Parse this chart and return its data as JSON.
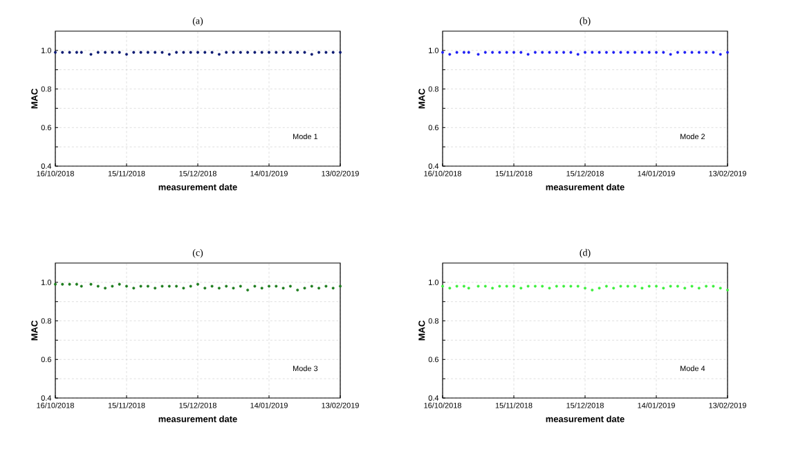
{
  "chart_data": [
    {
      "type": "scatter",
      "title": "(a)",
      "xlabel": "measurement date",
      "ylabel": "MAC",
      "annotations": [
        "Mode 1"
      ],
      "color": "#0b1a72",
      "grid": true,
      "x": [
        "2018-10-16",
        "2018-10-19",
        "2018-10-22",
        "2018-10-25",
        "2018-10-27",
        "2018-10-31",
        "2018-11-03",
        "2018-11-06",
        "2018-11-09",
        "2018-11-12",
        "2018-11-15",
        "2018-11-18",
        "2018-11-21",
        "2018-11-24",
        "2018-11-27",
        "2018-11-30",
        "2018-12-03",
        "2018-12-06",
        "2018-12-09",
        "2018-12-12",
        "2018-12-15",
        "2018-12-18",
        "2018-12-21",
        "2018-12-24",
        "2018-12-27",
        "2018-12-30",
        "2019-01-02",
        "2019-01-05",
        "2019-01-08",
        "2019-01-11",
        "2019-01-14",
        "2019-01-17",
        "2019-01-20",
        "2019-01-23",
        "2019-01-26",
        "2019-01-29",
        "2019-02-01",
        "2019-02-04",
        "2019-02-07",
        "2019-02-10",
        "2019-02-13"
      ],
      "values": [
        0.99,
        0.99,
        0.99,
        0.99,
        0.99,
        0.98,
        0.99,
        0.99,
        0.99,
        0.99,
        0.98,
        0.99,
        0.99,
        0.99,
        0.99,
        0.99,
        0.98,
        0.99,
        0.99,
        0.99,
        0.99,
        0.99,
        0.99,
        0.98,
        0.99,
        0.99,
        0.99,
        0.99,
        0.99,
        0.99,
        0.99,
        0.99,
        0.99,
        0.99,
        0.99,
        0.99,
        0.98,
        0.99,
        0.99,
        0.99,
        0.99
      ],
      "xlim": [
        "2018-10-16",
        "2019-02-13"
      ],
      "ylim": [
        0.4,
        1.1
      ],
      "xticks": [
        {
          "value": "2018-10-16",
          "label": "16/10/2018"
        },
        {
          "value": "2018-11-15",
          "label": "15/11/2018"
        },
        {
          "value": "2018-12-15",
          "label": "15/12/2018"
        },
        {
          "value": "2019-01-14",
          "label": "14/01/2019"
        },
        {
          "value": "2019-02-13",
          "label": "13/02/2019"
        }
      ],
      "yticks": [
        {
          "value": 0.4,
          "label": "0.4"
        },
        {
          "value": 0.5,
          "label": null
        },
        {
          "value": 0.6,
          "label": "0.6"
        },
        {
          "value": 0.7,
          "label": null
        },
        {
          "value": 0.8,
          "label": "0.8"
        },
        {
          "value": 0.9,
          "label": null
        },
        {
          "value": 1.0,
          "label": "1.0"
        }
      ]
    },
    {
      "type": "scatter",
      "title": "(b)",
      "xlabel": "measurement date",
      "ylabel": "MAC",
      "annotations": [
        "Mode 2"
      ],
      "color": "#1f1ff5",
      "grid": true,
      "x": [
        "2018-10-16",
        "2018-10-19",
        "2018-10-22",
        "2018-10-25",
        "2018-10-27",
        "2018-10-31",
        "2018-11-03",
        "2018-11-06",
        "2018-11-09",
        "2018-11-12",
        "2018-11-15",
        "2018-11-18",
        "2018-11-21",
        "2018-11-24",
        "2018-11-27",
        "2018-11-30",
        "2018-12-03",
        "2018-12-06",
        "2018-12-09",
        "2018-12-12",
        "2018-12-15",
        "2018-12-18",
        "2018-12-21",
        "2018-12-24",
        "2018-12-27",
        "2018-12-30",
        "2019-01-02",
        "2019-01-05",
        "2019-01-08",
        "2019-01-11",
        "2019-01-14",
        "2019-01-17",
        "2019-01-20",
        "2019-01-23",
        "2019-01-26",
        "2019-01-29",
        "2019-02-01",
        "2019-02-04",
        "2019-02-07",
        "2019-02-10",
        "2019-02-13"
      ],
      "values": [
        0.99,
        0.98,
        0.99,
        0.99,
        0.99,
        0.98,
        0.99,
        0.99,
        0.99,
        0.99,
        0.99,
        0.99,
        0.98,
        0.99,
        0.99,
        0.99,
        0.99,
        0.99,
        0.99,
        0.98,
        0.99,
        0.99,
        0.99,
        0.99,
        0.99,
        0.99,
        0.99,
        0.99,
        0.99,
        0.99,
        0.99,
        0.99,
        0.98,
        0.99,
        0.99,
        0.99,
        0.99,
        0.99,
        0.99,
        0.98,
        0.99
      ],
      "xlim": [
        "2018-10-16",
        "2019-02-13"
      ],
      "ylim": [
        0.4,
        1.1
      ],
      "xticks": [
        {
          "value": "2018-10-16",
          "label": "16/10/2018"
        },
        {
          "value": "2018-11-15",
          "label": "15/11/2018"
        },
        {
          "value": "2018-12-15",
          "label": "15/12/2018"
        },
        {
          "value": "2019-01-14",
          "label": "14/01/2019"
        },
        {
          "value": "2019-02-13",
          "label": "13/02/2019"
        }
      ],
      "yticks": [
        {
          "value": 0.4,
          "label": "0.4"
        },
        {
          "value": 0.5,
          "label": null
        },
        {
          "value": 0.6,
          "label": "0.6"
        },
        {
          "value": 0.7,
          "label": null
        },
        {
          "value": 0.8,
          "label": "0.8"
        },
        {
          "value": 0.9,
          "label": null
        },
        {
          "value": 1.0,
          "label": "1.0"
        }
      ]
    },
    {
      "type": "scatter",
      "title": "(c)",
      "xlabel": "measurement date",
      "ylabel": "MAC",
      "annotations": [
        "Mode 3"
      ],
      "color": "#1e7d1e",
      "grid": true,
      "x": [
        "2018-10-16",
        "2018-10-19",
        "2018-10-22",
        "2018-10-25",
        "2018-10-27",
        "2018-10-31",
        "2018-11-03",
        "2018-11-06",
        "2018-11-09",
        "2018-11-12",
        "2018-11-15",
        "2018-11-18",
        "2018-11-21",
        "2018-11-24",
        "2018-11-27",
        "2018-11-30",
        "2018-12-03",
        "2018-12-06",
        "2018-12-09",
        "2018-12-12",
        "2018-12-15",
        "2018-12-18",
        "2018-12-21",
        "2018-12-24",
        "2018-12-27",
        "2018-12-30",
        "2019-01-02",
        "2019-01-05",
        "2019-01-08",
        "2019-01-11",
        "2019-01-14",
        "2019-01-17",
        "2019-01-20",
        "2019-01-23",
        "2019-01-26",
        "2019-01-29",
        "2019-02-01",
        "2019-02-04",
        "2019-02-07",
        "2019-02-10",
        "2019-02-13"
      ],
      "values": [
        0.99,
        0.99,
        0.99,
        0.99,
        0.98,
        0.99,
        0.98,
        0.97,
        0.98,
        0.99,
        0.98,
        0.97,
        0.98,
        0.98,
        0.97,
        0.98,
        0.98,
        0.98,
        0.97,
        0.98,
        0.99,
        0.97,
        0.98,
        0.97,
        0.98,
        0.97,
        0.98,
        0.96,
        0.98,
        0.97,
        0.98,
        0.98,
        0.97,
        0.98,
        0.96,
        0.97,
        0.98,
        0.97,
        0.98,
        0.97,
        0.98
      ],
      "xlim": [
        "2018-10-16",
        "2019-02-13"
      ],
      "ylim": [
        0.4,
        1.1
      ],
      "xticks": [
        {
          "value": "2018-10-16",
          "label": "16/10/2018"
        },
        {
          "value": "2018-11-15",
          "label": "15/11/2018"
        },
        {
          "value": "2018-12-15",
          "label": "15/12/2018"
        },
        {
          "value": "2019-01-14",
          "label": "14/01/2019"
        },
        {
          "value": "2019-02-13",
          "label": "13/02/2019"
        }
      ],
      "yticks": [
        {
          "value": 0.4,
          "label": "0.4"
        },
        {
          "value": 0.5,
          "label": null
        },
        {
          "value": 0.6,
          "label": "0.6"
        },
        {
          "value": 0.7,
          "label": null
        },
        {
          "value": 0.8,
          "label": "0.8"
        },
        {
          "value": 0.9,
          "label": null
        },
        {
          "value": 1.0,
          "label": "1.0"
        }
      ]
    },
    {
      "type": "scatter",
      "title": "(d)",
      "xlabel": "measurement date",
      "ylabel": "MAC",
      "annotations": [
        "Mode 4"
      ],
      "color": "#3df03d",
      "grid": true,
      "x": [
        "2018-10-16",
        "2018-10-19",
        "2018-10-22",
        "2018-10-25",
        "2018-10-27",
        "2018-10-31",
        "2018-11-03",
        "2018-11-06",
        "2018-11-09",
        "2018-11-12",
        "2018-11-15",
        "2018-11-18",
        "2018-11-21",
        "2018-11-24",
        "2018-11-27",
        "2018-11-30",
        "2018-12-03",
        "2018-12-06",
        "2018-12-09",
        "2018-12-12",
        "2018-12-15",
        "2018-12-18",
        "2018-12-21",
        "2018-12-24",
        "2018-12-27",
        "2018-12-30",
        "2019-01-02",
        "2019-01-05",
        "2019-01-08",
        "2019-01-11",
        "2019-01-14",
        "2019-01-17",
        "2019-01-20",
        "2019-01-23",
        "2019-01-26",
        "2019-01-29",
        "2019-02-01",
        "2019-02-04",
        "2019-02-07",
        "2019-02-10",
        "2019-02-13"
      ],
      "values": [
        0.98,
        0.97,
        0.98,
        0.98,
        0.97,
        0.98,
        0.98,
        0.97,
        0.98,
        0.98,
        0.98,
        0.97,
        0.98,
        0.98,
        0.98,
        0.97,
        0.98,
        0.98,
        0.98,
        0.98,
        0.97,
        0.96,
        0.97,
        0.98,
        0.97,
        0.98,
        0.98,
        0.98,
        0.97,
        0.98,
        0.98,
        0.97,
        0.98,
        0.98,
        0.97,
        0.98,
        0.97,
        0.98,
        0.98,
        0.97,
        0.96
      ],
      "xlim": [
        "2018-10-16",
        "2019-02-13"
      ],
      "ylim": [
        0.4,
        1.1
      ],
      "xticks": [
        {
          "value": "2018-10-16",
          "label": "16/10/2018"
        },
        {
          "value": "2018-11-15",
          "label": "15/11/2018"
        },
        {
          "value": "2018-12-15",
          "label": "15/12/2018"
        },
        {
          "value": "2019-01-14",
          "label": "14/01/2019"
        },
        {
          "value": "2019-02-13",
          "label": "13/02/2019"
        }
      ],
      "yticks": [
        {
          "value": 0.4,
          "label": "0.4"
        },
        {
          "value": 0.5,
          "label": null
        },
        {
          "value": 0.6,
          "label": "0.6"
        },
        {
          "value": 0.7,
          "label": null
        },
        {
          "value": 0.8,
          "label": "0.8"
        },
        {
          "value": 0.9,
          "label": null
        },
        {
          "value": 1.0,
          "label": "1.0"
        }
      ]
    }
  ]
}
